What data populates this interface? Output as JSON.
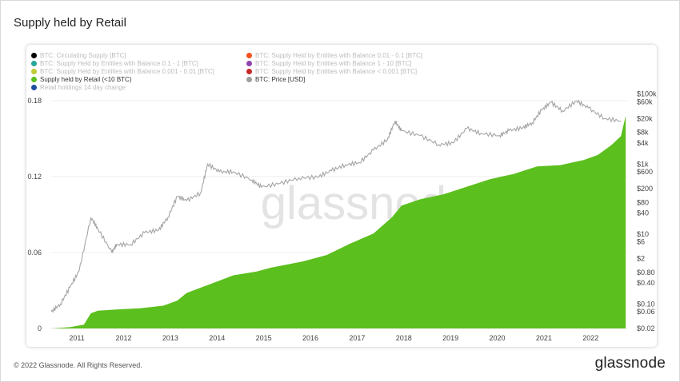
{
  "title": "Supply held by Retail",
  "footer": {
    "copyright": "© 2022 Glassnode. All Rights Reserved.",
    "logo": "glassnode"
  },
  "watermark": "glassnode",
  "legend": [
    {
      "label": "BTC: Circulating Supply [BTC]",
      "color": "#000000",
      "active": false
    },
    {
      "label": "BTC: Supply Held by Entities with Balance 0.01 - 0.1 [BTC]",
      "color": "#f4511e",
      "active": false
    },
    {
      "label": "BTC: Supply Held by Entities with Balance 0.1 - 1 [BTC]",
      "color": "#26a69a",
      "active": false
    },
    {
      "label": "BTC: Supply Held by Entities with Balance 1 - 10 [BTC]",
      "color": "#8e44ad",
      "active": false
    },
    {
      "label": "BTC: Supply Held by Entities with Balance 0.001 - 0.01 [BTC]",
      "color": "#c0ca33",
      "active": false
    },
    {
      "label": "BTC: Supply Held by Entities with Balance < 0.001 [BTC]",
      "color": "#c62828",
      "active": false
    },
    {
      "label": "Supply held by Retail (<10 BTC)",
      "color": "#5bbf1d",
      "active": true
    },
    {
      "label": "BTC: Price [USD]",
      "color": "#9e9e9e",
      "active": true
    },
    {
      "label": "Retail holdings 14 day change",
      "color": "#1e4fa0",
      "active": false
    }
  ],
  "chart_data": {
    "type": "area",
    "title": "Supply held by Retail",
    "x_ticks": [
      "2011",
      "2012",
      "2013",
      "2014",
      "2015",
      "2016",
      "2017",
      "2018",
      "2019",
      "2020",
      "2021",
      "2022"
    ],
    "x_range": [
      2010.6,
      2022.95
    ],
    "y_left": {
      "ticks": [
        "0",
        "0.06",
        "0.12",
        "0.18"
      ],
      "range": [
        0,
        0.19
      ]
    },
    "y_right": {
      "scale": "log",
      "ticks": [
        "$0.02",
        "$0.06",
        "$0.10",
        "$0.40",
        "$0.80",
        "$2",
        "$6",
        "$10",
        "$40",
        "$80",
        "$200",
        "$600",
        "$1k",
        "$4k",
        "$8k",
        "$20k",
        "$60k",
        "$100k"
      ],
      "range": [
        0.02,
        150000
      ]
    },
    "grid": true,
    "legend_placement": "top-left",
    "series": [
      {
        "name": "Supply held by Retail (<10 BTC)",
        "type": "area",
        "color": "#5bbf1d",
        "axis": "left",
        "x": [
          2010.6,
          2011.0,
          2011.3,
          2011.45,
          2011.6,
          2012.0,
          2012.5,
          2013.0,
          2013.3,
          2013.5,
          2014.0,
          2014.5,
          2015.0,
          2015.3,
          2016.0,
          2016.5,
          2017.0,
          2017.5,
          2017.9,
          2018.1,
          2018.5,
          2019.0,
          2019.5,
          2020.0,
          2020.5,
          2021.0,
          2021.5,
          2022.0,
          2022.3,
          2022.6,
          2022.8,
          2022.9
        ],
        "values": [
          0.0,
          0.001,
          0.003,
          0.012,
          0.014,
          0.015,
          0.016,
          0.018,
          0.022,
          0.028,
          0.035,
          0.042,
          0.045,
          0.048,
          0.053,
          0.058,
          0.067,
          0.075,
          0.088,
          0.097,
          0.102,
          0.106,
          0.112,
          0.118,
          0.122,
          0.128,
          0.129,
          0.133,
          0.137,
          0.145,
          0.152,
          0.168
        ]
      },
      {
        "name": "BTC: Price [USD]",
        "type": "line",
        "color": "#9e9e9e",
        "axis": "right",
        "x": [
          2010.6,
          2010.8,
          2011.0,
          2011.2,
          2011.45,
          2011.6,
          2011.9,
          2012.0,
          2012.3,
          2012.6,
          2012.9,
          2013.1,
          2013.3,
          2013.5,
          2013.8,
          2013.95,
          2014.2,
          2014.5,
          2014.9,
          2015.1,
          2015.5,
          2015.9,
          2016.3,
          2016.6,
          2016.9,
          2017.2,
          2017.5,
          2017.8,
          2017.96,
          2018.1,
          2018.5,
          2018.9,
          2019.2,
          2019.5,
          2019.8,
          2020.2,
          2020.4,
          2020.7,
          2020.9,
          2021.1,
          2021.3,
          2021.55,
          2021.85,
          2022.1,
          2022.45,
          2022.8
        ],
        "values": [
          0.06,
          0.1,
          0.3,
          0.9,
          30,
          14,
          3,
          5,
          5,
          11,
          13,
          30,
          120,
          90,
          150,
          1000,
          600,
          600,
          350,
          220,
          280,
          400,
          420,
          650,
          950,
          1100,
          2500,
          5000,
          17000,
          9000,
          6500,
          3600,
          4000,
          10500,
          7500,
          6500,
          9000,
          11000,
          15000,
          35000,
          58000,
          33000,
          64000,
          40000,
          20000,
          17000
        ]
      }
    ]
  }
}
